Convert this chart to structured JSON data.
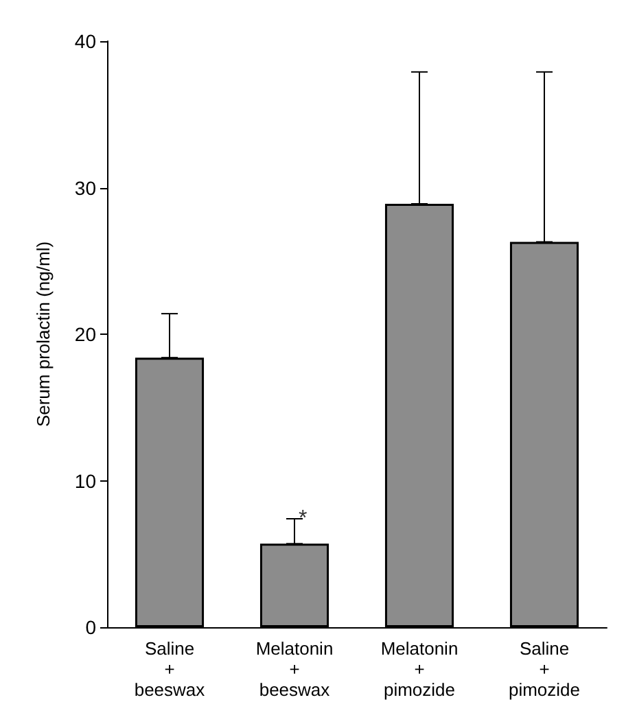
{
  "chart_data": {
    "type": "bar",
    "ylabel": "Serum prolactin (ng/ml)",
    "categories": [
      "Saline\n+\nbeeswax",
      "Melatonin\n+\nbeeswax",
      "Melatonin\n+\npimozide",
      "Saline\n+\npimozide"
    ],
    "values": [
      18.4,
      5.7,
      28.9,
      26.3
    ],
    "errors": [
      [
        18.4,
        21.4
      ],
      [
        5.7,
        7.4
      ],
      [
        28.9,
        37.9
      ],
      [
        26.3,
        37.9
      ]
    ],
    "color": "#8c8c8c",
    "ylim": [
      0,
      40
    ],
    "yticks": [
      0,
      10,
      20,
      30,
      40
    ],
    "grid": false,
    "annotations": [
      {
        "text": "*",
        "x": "Melatonin\n+\nbeeswax",
        "y": 7.4
      }
    ]
  }
}
